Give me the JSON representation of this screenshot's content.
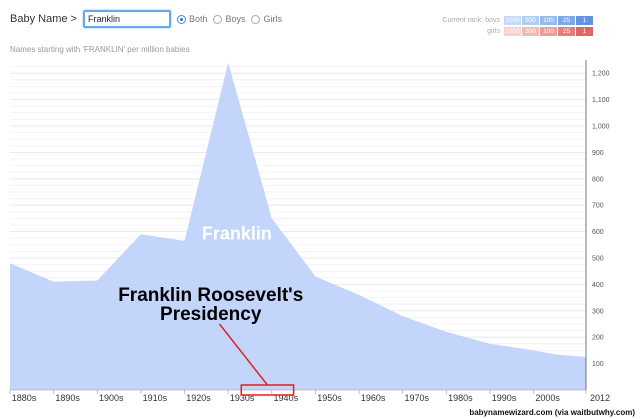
{
  "toolbar": {
    "label": "Baby Name >",
    "name_value": "Franklin",
    "radios": [
      {
        "label": "Both",
        "selected": true
      },
      {
        "label": "Boys",
        "selected": false
      },
      {
        "label": "Girls",
        "selected": false
      }
    ]
  },
  "rank_legend": {
    "title": "Current rank:",
    "rows": [
      {
        "label": "boys",
        "cells": [
          "1000",
          "500",
          "100",
          "25",
          "1"
        ],
        "colors": [
          "#c6d9f6",
          "#b2ccf2",
          "#97baec",
          "#7ea8e6",
          "#6494de"
        ]
      },
      {
        "label": "girls",
        "cells": [
          "1000",
          "500",
          "100",
          "25",
          "1"
        ],
        "colors": [
          "#f6cfcf",
          "#f2b7b7",
          "#ec9a9a",
          "#e67e7e",
          "#e06565"
        ]
      }
    ]
  },
  "subtitle": "Names starting with 'FRANKLIN' per million babies",
  "chart_data": {
    "type": "area",
    "x": [
      1880,
      1890,
      1900,
      1910,
      1920,
      1930,
      1940,
      1950,
      1960,
      1970,
      1980,
      1990,
      2000,
      2005,
      2012
    ],
    "values": [
      480,
      410,
      415,
      590,
      565,
      1240,
      650,
      430,
      360,
      280,
      220,
      175,
      150,
      135,
      125
    ],
    "x_tick_labels": [
      "1880s",
      "1890s",
      "1900s",
      "1910s",
      "1920s",
      "1930s",
      "1940s",
      "1950s",
      "1960s",
      "1970s",
      "1980s",
      "1990s",
      "2000s",
      "2012"
    ],
    "y_tick_labels": [
      "100",
      "200",
      "300",
      "400",
      "500",
      "600",
      "700",
      "800",
      "900",
      "1,000",
      "1,100",
      "1,200"
    ],
    "ylim": [
      0,
      1250
    ],
    "xlim": [
      1880,
      2012
    ],
    "series_label": "Franklin",
    "fill_color": "#c3d5fa",
    "annotation": {
      "text_line1": "Franklin Roosevelt's",
      "text_line2": "Presidency",
      "start": 1933,
      "end": 1945,
      "color": "#e02020"
    }
  },
  "credit": "babynamewizard.com (via waitbutwhy.com)"
}
